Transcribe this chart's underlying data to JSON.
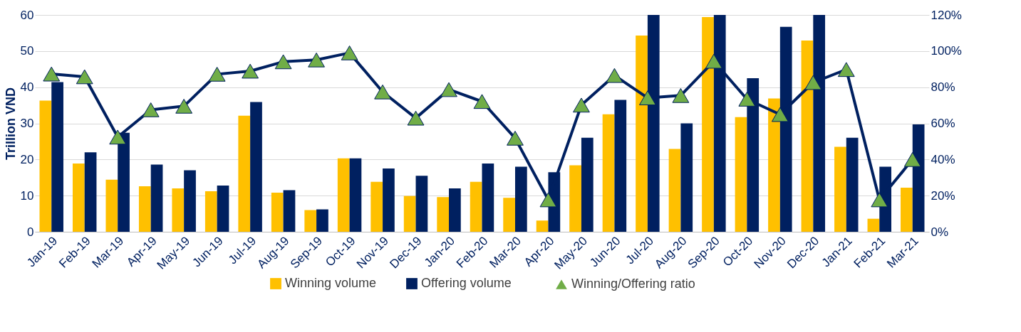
{
  "chart_data": {
    "type": "bar",
    "ylabel": "Trillion VND",
    "categories": [
      "Jan-19",
      "Feb-19",
      "Mar-19",
      "Apr-19",
      "May-19",
      "Jun-19",
      "Jul-19",
      "Aug-19",
      "Sep-19",
      "Oct-19",
      "Nov-19",
      "Dec-19",
      "Jan-20",
      "Feb-20",
      "Mar-20",
      "Apr-20",
      "May-20",
      "Jun-20",
      "Jul-20",
      "Aug-20",
      "Sep-20",
      "Oct-20",
      "Nov-20",
      "Dec-20",
      "Jan-21",
      "Feb-21",
      "Mar-21"
    ],
    "series": [
      {
        "name": "Winning volume",
        "type": "bar",
        "color": "#ffc000",
        "values": [
          36.3,
          18.9,
          14.4,
          12.6,
          12.0,
          11.2,
          32.1,
          10.8,
          6.0,
          20.3,
          13.8,
          9.9,
          9.6,
          13.8,
          9.4,
          3.1,
          18.4,
          32.5,
          54.3,
          22.9,
          59.4,
          31.7,
          36.9,
          52.9,
          23.5,
          3.6,
          12.2
        ]
      },
      {
        "name": "Offering volume",
        "type": "bar",
        "color": "#002060",
        "values": [
          41.4,
          22.0,
          27.4,
          18.6,
          17.0,
          12.8,
          35.9,
          11.5,
          6.2,
          20.3,
          17.5,
          15.5,
          12.0,
          18.9,
          18.0,
          16.5,
          26.0,
          36.5,
          60,
          30.0,
          60,
          42.5,
          56.7,
          60,
          26.0,
          18.0,
          29.7
        ]
      },
      {
        "name": "Winning/Offering ratio",
        "type": "line",
        "axis": "y2",
        "color": "#002060",
        "marker": "triangle",
        "values": [
          87.3,
          85.8,
          52.4,
          67.5,
          69.5,
          87.2,
          88.9,
          94.1,
          95.1,
          99.0,
          77.4,
          62.9,
          78.7,
          72.1,
          51.8,
          17.7,
          70.1,
          86.5,
          74.1,
          75.4,
          94.4,
          73.4,
          64.9,
          82.6,
          89.8,
          17.7,
          40.0
        ]
      }
    ],
    "ylim": [
      0,
      60
    ],
    "yticks": [
      0,
      10,
      20,
      30,
      40,
      50,
      60
    ],
    "y2lim": [
      0,
      120
    ],
    "y2ticks": [
      {
        "value": 0,
        "label": "0%"
      },
      {
        "value": 20,
        "label": "20%"
      },
      {
        "value": 40,
        "label": "40%"
      },
      {
        "value": 60,
        "label": "60%"
      },
      {
        "value": 80,
        "label": "80%"
      },
      {
        "value": 100,
        "label": "100%"
      },
      {
        "value": 120,
        "label": "120%"
      }
    ],
    "grid": "y",
    "legend": "bottom"
  }
}
